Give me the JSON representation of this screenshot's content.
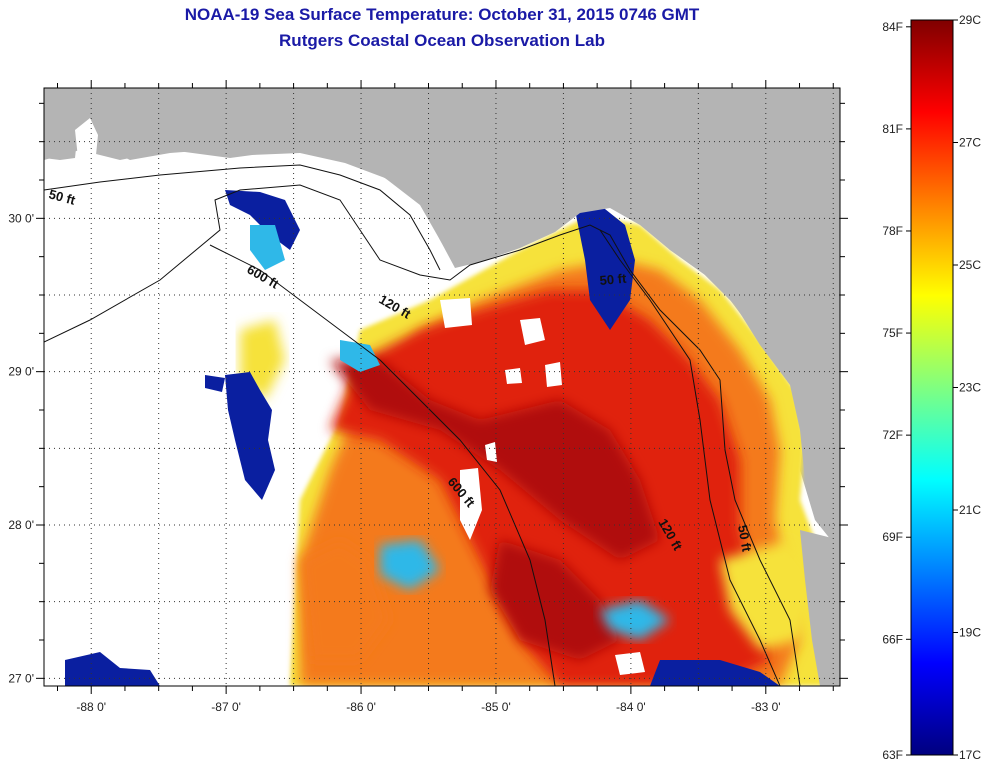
{
  "header": {
    "title": "NOAA-19 Sea Surface Temperature:  October 31, 2015 0746 GMT",
    "subtitle": "Rutgers Coastal Ocean Observation Lab"
  },
  "axes": {
    "x_ticks": [
      "-88 0'",
      "-87 0'",
      "-86 0'",
      "-85 0'",
      "-84 0'",
      "-83 0'"
    ],
    "y_ticks": [
      "30 0'",
      "29 0'",
      "28 0'",
      "27 0'"
    ],
    "lon_range": [
      -88.35,
      -82.45
    ],
    "lat_range": [
      26.95,
      30.85
    ]
  },
  "contours": {
    "labels": [
      "50 ft",
      "600 ft",
      "120 ft",
      "50 ft",
      "600 ft",
      "120 ft",
      "50 ft"
    ]
  },
  "colorbar": {
    "celsius": [
      "29C",
      "27C",
      "25C",
      "23C",
      "21C",
      "19C",
      "17C"
    ],
    "fahrenheit": [
      "84F",
      "81F",
      "78F",
      "75F",
      "72F",
      "69F",
      "66F",
      "63F"
    ],
    "range_c": [
      17,
      29
    ],
    "colors": [
      "#00007f",
      "#0000ff",
      "#0080ff",
      "#00ffff",
      "#80ff80",
      "#ffff00",
      "#ff8000",
      "#ff0000",
      "#7f0000"
    ]
  },
  "map_colors": {
    "land": "#b4b4b4",
    "no_data": "#ffffff",
    "warm": "#e0200f",
    "hot": "#b00f0a",
    "orange": "#f47a1a",
    "yellow": "#f6e23a",
    "cool": "#2fb8e8",
    "cold": "#0a1fa0"
  }
}
